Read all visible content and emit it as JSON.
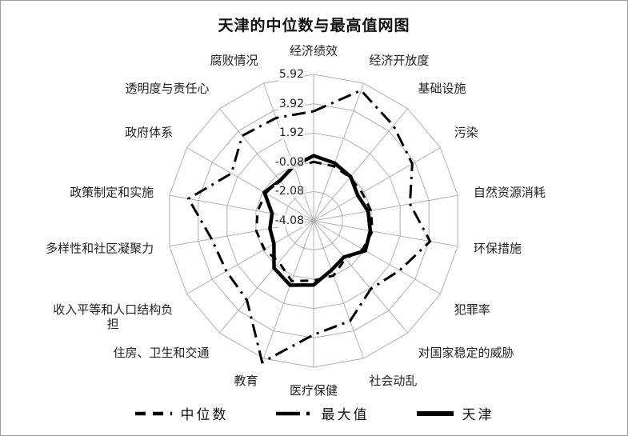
{
  "title": "天津的中位数与最高值网图",
  "colors": {
    "line": "#000000",
    "grid": "#b0b0b0",
    "text": "#222222",
    "frame_border": "#9b9b9b"
  },
  "chart_data": {
    "type": "radar",
    "title": "天津的中位数与最高值网图",
    "categories": [
      "经济绩效",
      "经济开放度",
      "基础设施",
      "污染",
      "自然资源消耗",
      "环保措施",
      "犯罪率",
      "对国家稳定的威胁",
      "社会动乱",
      "医疗保健",
      "教育",
      "住房、卫生和交通",
      "收入平等和人口结构负担",
      "多样性和社区凝聚力",
      "政策制定和实施",
      "政府体系",
      "透明度与责任心",
      "腐败情况"
    ],
    "axis": {
      "min": -4.08,
      "max": 5.92,
      "step": 2,
      "tick_labels": [
        "5.92",
        "3.92",
        "1.92",
        "-0.08",
        "-2.08",
        "-4.08"
      ]
    },
    "grid": true,
    "legend_position": "bottom",
    "series": [
      {
        "key": "median",
        "name": "中位数",
        "style": "dashed",
        "values": [
          -0.05,
          -0.1,
          -0.2,
          -0.25,
          -0.1,
          0.0,
          -0.2,
          -0.7,
          -0.1,
          0.0,
          0.3,
          -0.4,
          -0.2,
          -0.1,
          -0.2,
          -0.3,
          -0.45,
          -0.2
        ]
      },
      {
        "key": "max",
        "name": "最大值",
        "style": "dashdot",
        "values": [
          3.4,
          5.4,
          4.4,
          3.7,
          2.6,
          4.0,
          2.7,
          2.0,
          3.2,
          3.7,
          6.2,
          3.0,
          2.8,
          3.0,
          4.6,
          2.4,
          3.5,
          3.4
        ]
      },
      {
        "key": "tianjin",
        "name": "天津",
        "style": "solid",
        "values": [
          0.37,
          0.12,
          -0.15,
          -0.6,
          -0.3,
          -0.15,
          0.0,
          -0.85,
          -0.5,
          0.3,
          0.6,
          0.13,
          -0.95,
          -1.05,
          -1.2,
          -0.2,
          -0.5,
          -0.1
        ]
      }
    ]
  }
}
